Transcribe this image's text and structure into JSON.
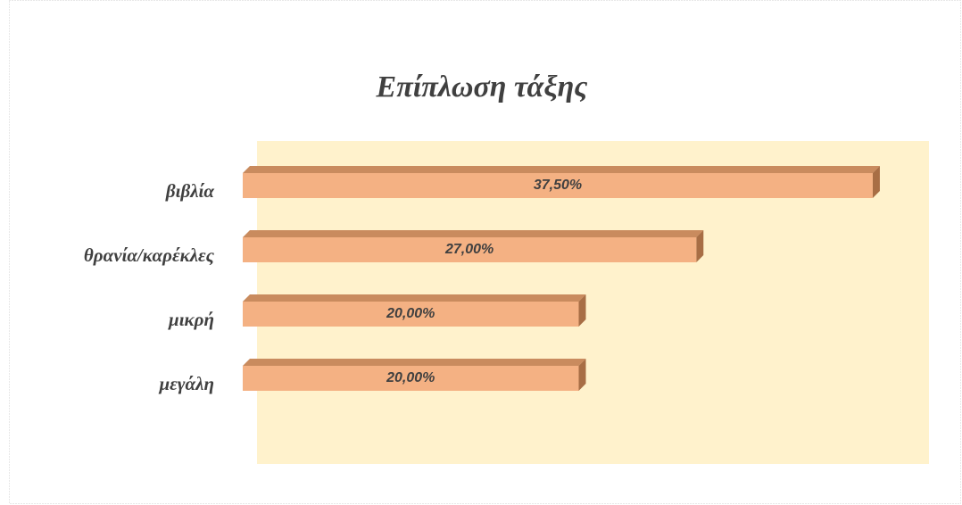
{
  "chart_data": {
    "type": "bar3d-horizontal",
    "title": "Επίπλωση τάξης",
    "categories": [
      "βιβλία",
      "θρανία/καρέκλες",
      "μικρή",
      "μεγάλη"
    ],
    "values": [
      37.5,
      27,
      20,
      20
    ],
    "value_labels": [
      "37,50%",
      "27,00%",
      "20,00%",
      "20,00%"
    ],
    "color": "#f4b183",
    "plot_background": "#fff2cc",
    "xlim": [
      0,
      40
    ]
  }
}
